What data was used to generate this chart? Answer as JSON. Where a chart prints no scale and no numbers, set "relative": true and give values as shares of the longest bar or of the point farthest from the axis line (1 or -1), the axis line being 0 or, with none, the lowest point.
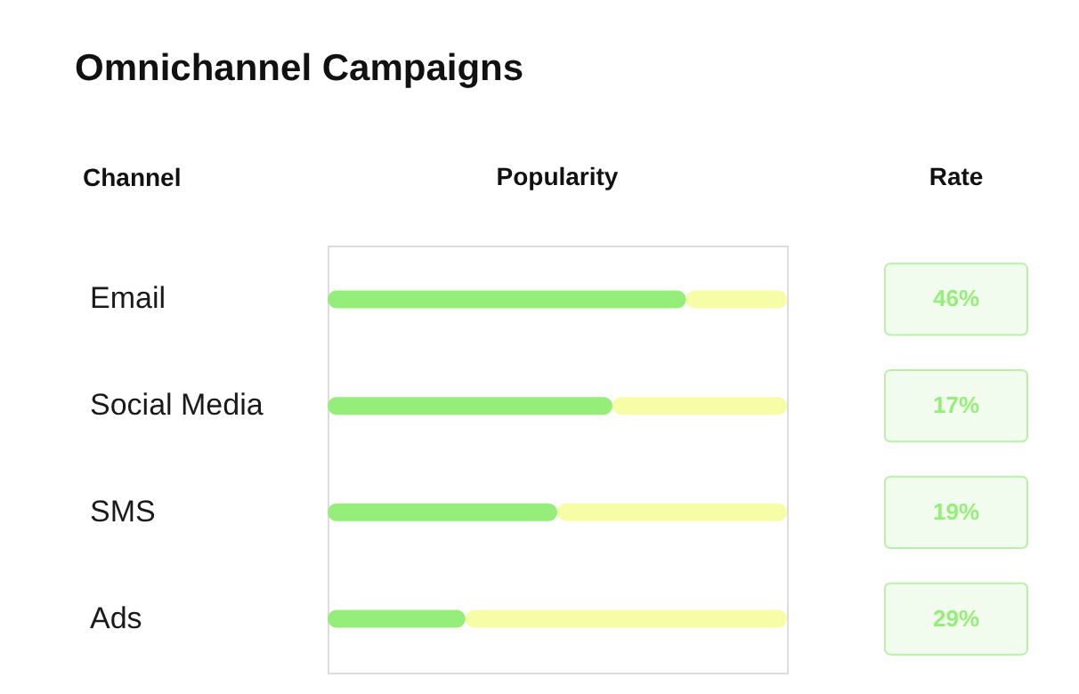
{
  "chart_data": {
    "type": "bar",
    "orientation": "horizontal",
    "stacked": true,
    "relative": true,
    "title": "Omnichannel Campaigns",
    "ylabel": "Channel",
    "xlabel": "Popularity",
    "annotations": [
      "Rate",
      "46%",
      "17%",
      "19%",
      "29%"
    ],
    "categories": [
      "Email",
      "Social Media",
      "SMS",
      "Ads"
    ],
    "series": [
      {
        "color": "#95ee7a",
        "values": [
          0.78,
          0.62,
          0.5,
          0.3
        ]
      },
      {
        "color": "#f7fca6",
        "values": [
          0.22,
          0.38,
          0.5,
          0.7
        ]
      }
    ]
  }
}
